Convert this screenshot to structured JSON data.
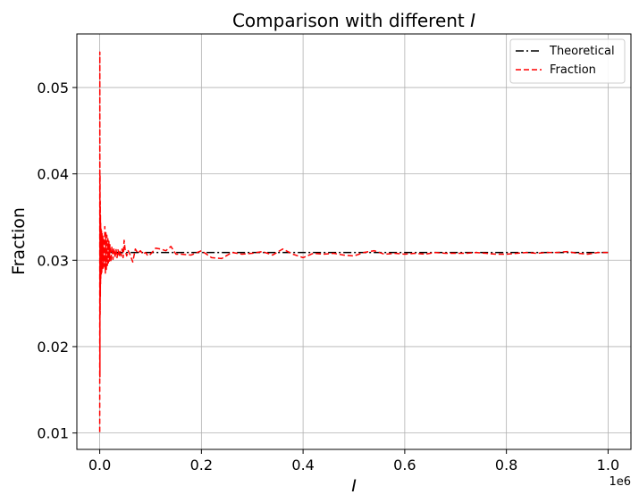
{
  "chart_data": {
    "type": "line",
    "title": "Comparison with different I",
    "title_prefix": "Comparison with different ",
    "title_var": "I",
    "xlabel": "I",
    "ylabel": "Fraction",
    "x_offset_text": "1e6",
    "xlim": [
      -45000,
      1045000
    ],
    "ylim": [
      0.0081,
      0.0562
    ],
    "x_ticks": [
      0,
      0.2,
      0.4,
      0.6,
      0.8,
      1.0
    ],
    "x_tick_labels": [
      "0.0",
      "0.2",
      "0.4",
      "0.6",
      "0.8",
      "1.0"
    ],
    "x_tick_scale": 1000000,
    "y_ticks": [
      0.01,
      0.02,
      0.03,
      0.04,
      0.05
    ],
    "y_tick_labels": [
      "0.01",
      "0.02",
      "0.03",
      "0.04",
      "0.05"
    ],
    "grid": true,
    "legend_position": "top-right",
    "series": [
      {
        "name": "Theoretical",
        "color": "#000000",
        "style": "dash-dot",
        "x": [
          1000,
          1000000
        ],
        "y": [
          0.0309,
          0.0309
        ]
      },
      {
        "name": "Fraction",
        "color": "#ff0000",
        "style": "dashed",
        "x": [
          0,
          200,
          400,
          600,
          800,
          1000,
          1200,
          1400,
          1600,
          1800,
          2000,
          2500,
          3000,
          3500,
          4000,
          4500,
          5000,
          6000,
          7000,
          8000,
          9000,
          10000,
          11000,
          12000,
          13000,
          14000,
          15000,
          16000,
          17000,
          18000,
          19000,
          20000,
          22000,
          24000,
          26000,
          28000,
          30000,
          32000,
          34000,
          36000,
          38000,
          40000,
          42000,
          44000,
          46000,
          48000,
          50000,
          53000,
          56000,
          60000,
          65000,
          70000,
          75000,
          80000,
          85000,
          90000,
          95000,
          100000,
          110000,
          120000,
          130000,
          140000,
          150000,
          160000,
          180000,
          200000,
          220000,
          240000,
          260000,
          280000,
          300000,
          320000,
          340000,
          360000,
          380000,
          400000,
          420000,
          440000,
          460000,
          480000,
          500000,
          520000,
          540000,
          560000,
          580000,
          600000,
          620000,
          640000,
          660000,
          680000,
          700000,
          720000,
          740000,
          760000,
          780000,
          800000,
          820000,
          840000,
          860000,
          880000,
          900000,
          920000,
          940000,
          960000,
          980000,
          1000000
        ],
        "y": [
          0.0101,
          0.0541,
          0.0165,
          0.0399,
          0.0237,
          0.0368,
          0.0258,
          0.0352,
          0.0271,
          0.0343,
          0.0279,
          0.0338,
          0.0282,
          0.0334,
          0.0286,
          0.0331,
          0.0289,
          0.0328,
          0.0291,
          0.0326,
          0.0293,
          0.0339,
          0.0285,
          0.0332,
          0.0288,
          0.0329,
          0.0294,
          0.0325,
          0.0297,
          0.0322,
          0.0299,
          0.0318,
          0.0298,
          0.0316,
          0.0301,
          0.0314,
          0.0303,
          0.0313,
          0.0303,
          0.0312,
          0.0304,
          0.0311,
          0.0305,
          0.0313,
          0.0303,
          0.0323,
          0.0312,
          0.0305,
          0.0311,
          0.0306,
          0.0298,
          0.0313,
          0.0308,
          0.0311,
          0.0307,
          0.0309,
          0.0305,
          0.0307,
          0.0314,
          0.0313,
          0.0311,
          0.0316,
          0.0307,
          0.0307,
          0.0306,
          0.0311,
          0.0303,
          0.0302,
          0.0309,
          0.0307,
          0.0308,
          0.031,
          0.0306,
          0.0313,
          0.0307,
          0.0303,
          0.0308,
          0.0307,
          0.0308,
          0.0306,
          0.0305,
          0.0309,
          0.0311,
          0.0307,
          0.0308,
          0.0307,
          0.0308,
          0.0307,
          0.0309,
          0.0308,
          0.0308,
          0.0308,
          0.0309,
          0.0308,
          0.0307,
          0.0307,
          0.0308,
          0.0309,
          0.0308,
          0.0309,
          0.0309,
          0.031,
          0.0308,
          0.0307,
          0.0309,
          0.0309
        ]
      }
    ]
  }
}
